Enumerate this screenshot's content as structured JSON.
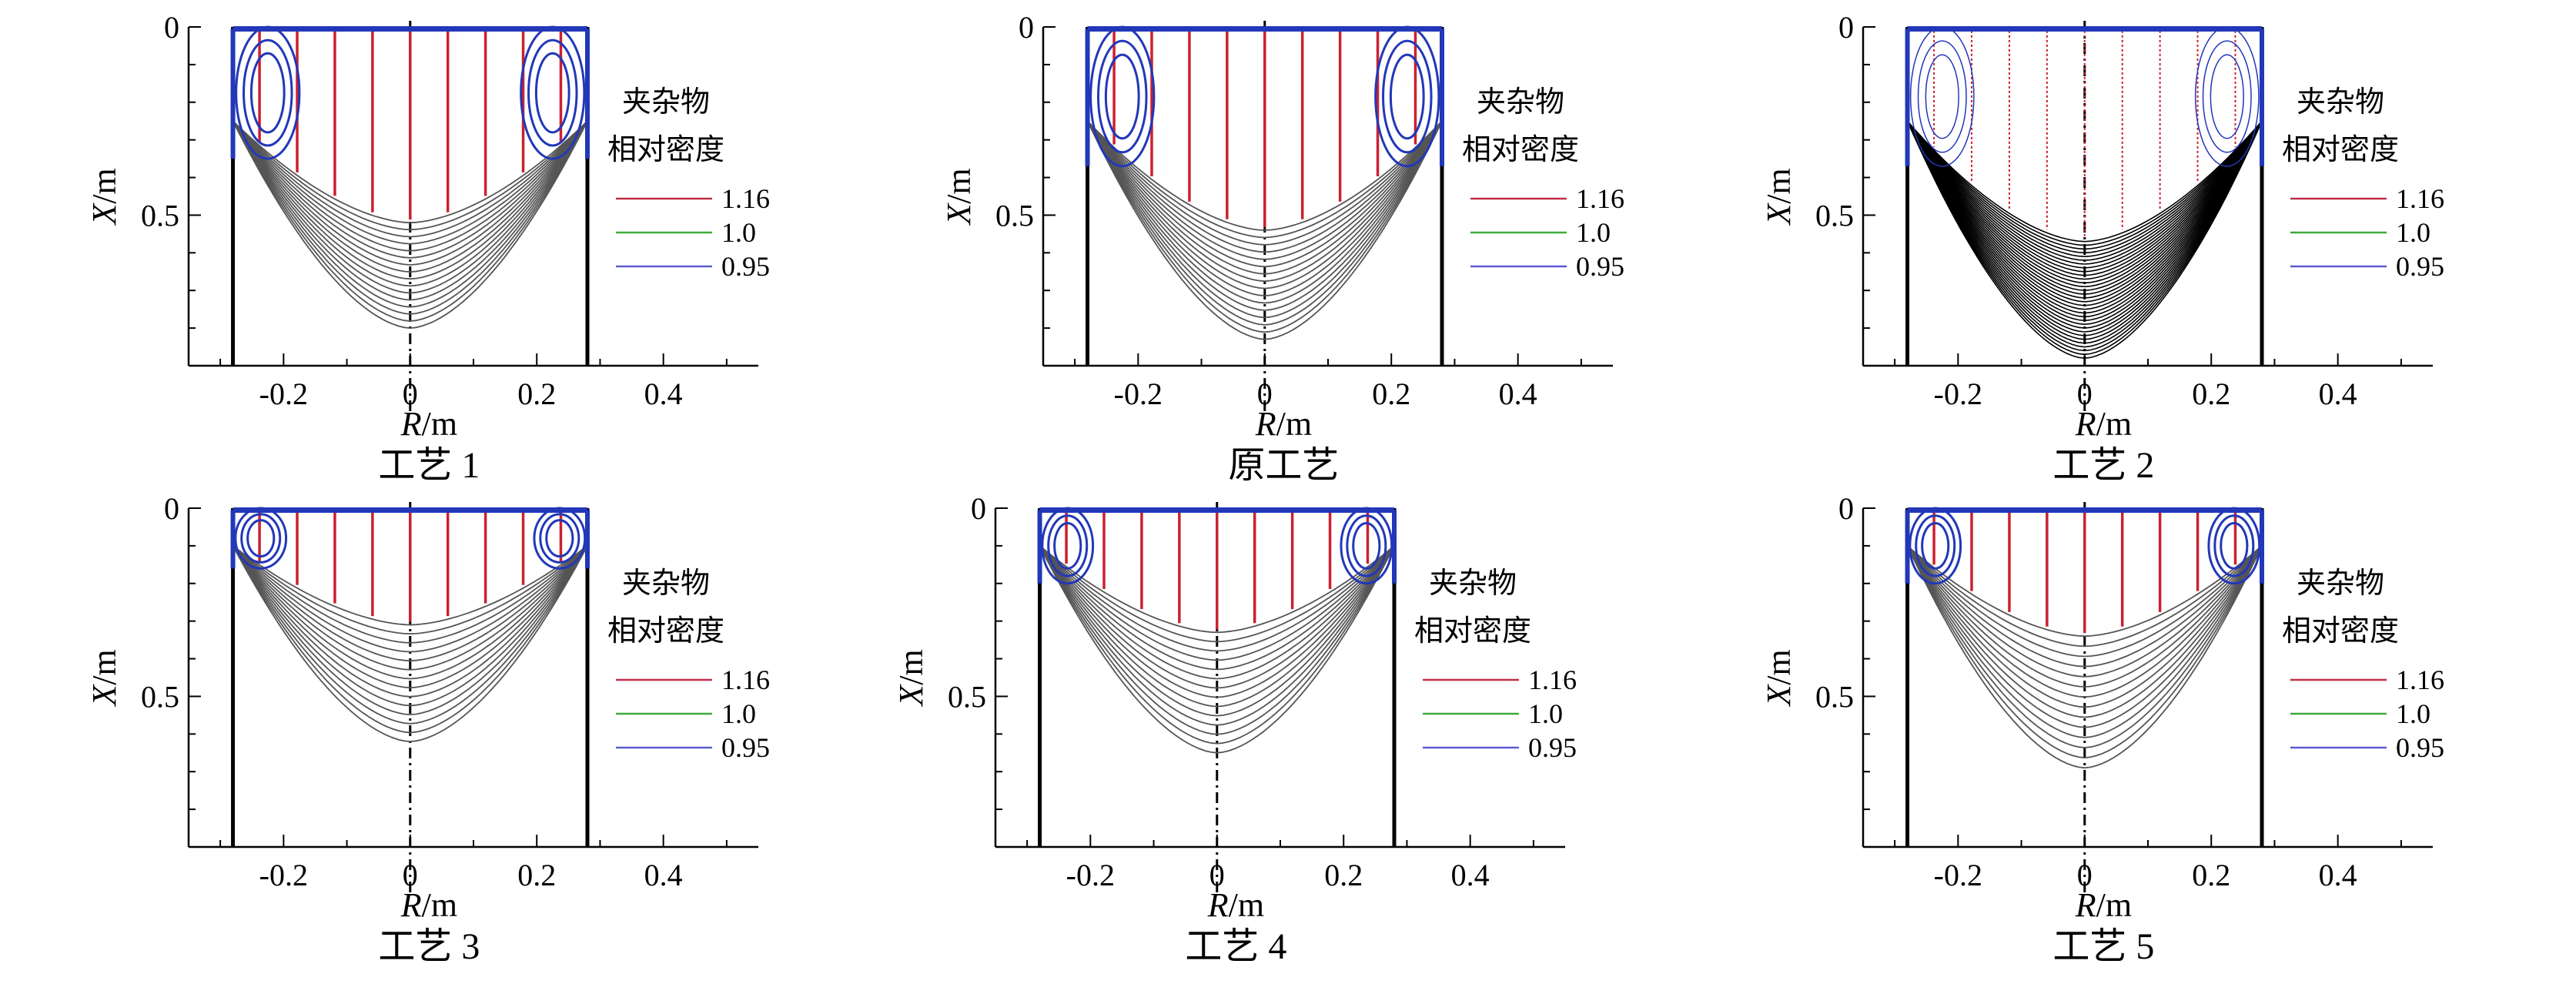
{
  "figure": {
    "panels_per_row": 3,
    "legend": {
      "title_line1": "夹杂物",
      "title_line2": "相对密度",
      "entries": [
        {
          "label": "1.16",
          "color": "#c0304a"
        },
        {
          "label": "1.0",
          "color": "#3caa3c"
        },
        {
          "label": "0.95",
          "color": "#5a5ad2"
        }
      ]
    },
    "colors": {
      "red": "#cc2030",
      "blue": "#2238b8",
      "gray": "#555555",
      "black": "#000000"
    }
  },
  "chart_data": [
    {
      "type": "line",
      "title": "工艺 1",
      "xlabel": "R/m",
      "ylabel": "X/m",
      "xlim": [
        -0.35,
        0.55
      ],
      "ylim": [
        0,
        0.9
      ],
      "x_ticks": [
        "-0.2",
        "0",
        "0.2",
        "0.4"
      ],
      "y_ticks": [
        "0",
        "0.5"
      ],
      "mold_radius": 0.28,
      "solid_front_center_depth": 0.52,
      "pool_bottom_depth": 0.8,
      "solid_front_edge_depth": 0.25,
      "contour_count": 16,
      "red_streamline_count": 9,
      "vortex_depth": 0.35,
      "vortex_width": 0.1,
      "dense": false
    },
    {
      "type": "line",
      "title": "原工艺",
      "xlabel": "R/m",
      "ylabel": "X/m",
      "xlim": [
        -0.35,
        0.55
      ],
      "ylim": [
        0,
        0.9
      ],
      "x_ticks": [
        "-0.2",
        "0",
        "0.2",
        "0.4"
      ],
      "y_ticks": [
        "0",
        "0.5"
      ],
      "mold_radius": 0.28,
      "solid_front_center_depth": 0.54,
      "pool_bottom_depth": 0.83,
      "solid_front_edge_depth": 0.25,
      "contour_count": 16,
      "red_streamline_count": 9,
      "vortex_depth": 0.37,
      "vortex_width": 0.1,
      "dense": false
    },
    {
      "type": "line",
      "title": "工艺 2",
      "xlabel": "R/m",
      "ylabel": "X/m",
      "xlim": [
        -0.35,
        0.55
      ],
      "ylim": [
        0,
        0.9
      ],
      "x_ticks": [
        "-0.2",
        "0",
        "0.2",
        "0.4"
      ],
      "y_ticks": [
        "0",
        "0.5"
      ],
      "mold_radius": 0.28,
      "solid_front_center_depth": 0.57,
      "pool_bottom_depth": 0.88,
      "solid_front_edge_depth": 0.25,
      "contour_count": 32,
      "red_streamline_count": 9,
      "vortex_depth": 0.37,
      "vortex_width": 0.1,
      "dense": true
    },
    {
      "type": "line",
      "title": "工艺 3",
      "xlabel": "R/m",
      "ylabel": "X/m",
      "xlim": [
        -0.35,
        0.55
      ],
      "ylim": [
        0,
        0.9
      ],
      "x_ticks": [
        "-0.2",
        "0",
        "0.2",
        "0.4"
      ],
      "y_ticks": [
        "0",
        "0.5"
      ],
      "mold_radius": 0.28,
      "solid_front_center_depth": 0.31,
      "pool_bottom_depth": 0.62,
      "solid_front_edge_depth": 0.1,
      "contour_count": 14,
      "red_streamline_count": 9,
      "vortex_depth": 0.16,
      "vortex_width": 0.08,
      "dense": false
    },
    {
      "type": "line",
      "title": "工艺 4",
      "xlabel": "R/m",
      "ylabel": "X/m",
      "xlim": [
        -0.35,
        0.55
      ],
      "ylim": [
        0,
        0.9
      ],
      "x_ticks": [
        "-0.2",
        "0",
        "0.2",
        "0.4"
      ],
      "y_ticks": [
        "0",
        "0.5"
      ],
      "mold_radius": 0.28,
      "solid_front_center_depth": 0.33,
      "pool_bottom_depth": 0.65,
      "solid_front_edge_depth": 0.1,
      "contour_count": 14,
      "red_streamline_count": 9,
      "vortex_depth": 0.2,
      "vortex_width": 0.08,
      "dense": false
    },
    {
      "type": "line",
      "title": "工艺 5",
      "xlabel": "R/m",
      "ylabel": "X/m",
      "xlim": [
        -0.35,
        0.55
      ],
      "ylim": [
        0,
        0.9
      ],
      "x_ticks": [
        "-0.2",
        "0",
        "0.2",
        "0.4"
      ],
      "y_ticks": [
        "0",
        "0.5"
      ],
      "mold_radius": 0.28,
      "solid_front_center_depth": 0.34,
      "pool_bottom_depth": 0.69,
      "solid_front_edge_depth": 0.1,
      "contour_count": 14,
      "red_streamline_count": 9,
      "vortex_depth": 0.2,
      "vortex_width": 0.08,
      "dense": false
    }
  ]
}
